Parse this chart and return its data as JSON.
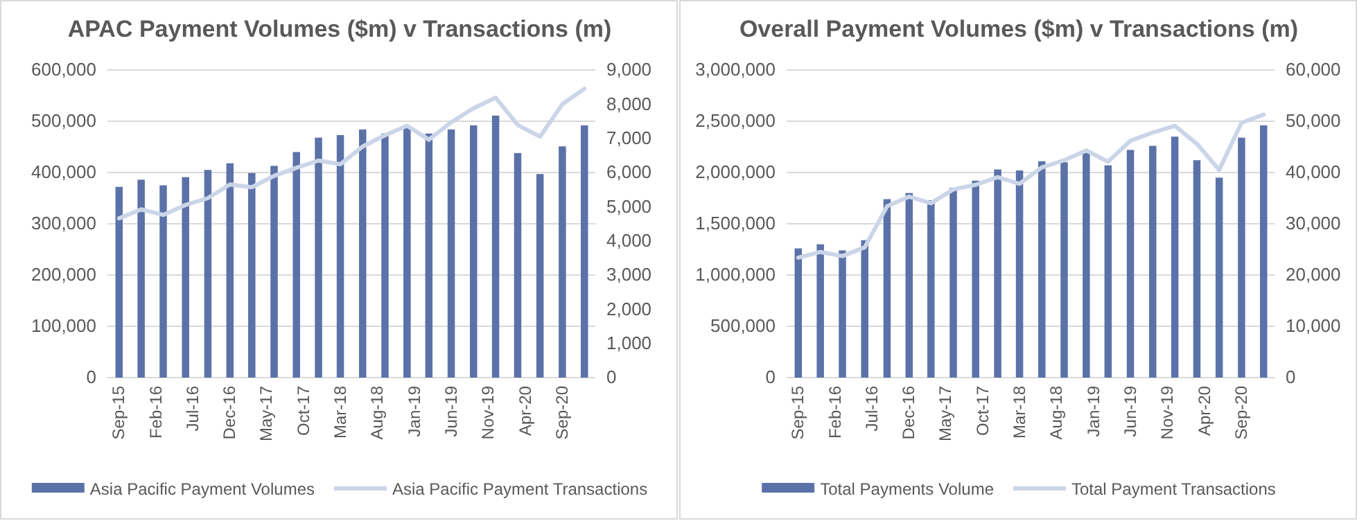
{
  "chart_data": [
    {
      "type": "bar",
      "title": "APAC Payment Volumes ($m) v Transactions (m)",
      "x": [
        "2015-09",
        "2015-12",
        "2016-03",
        "2016-06",
        "2016-09",
        "2016-12",
        "2017-03",
        "2017-06",
        "2017-09",
        "2017-12",
        "2018-03",
        "2018-06",
        "2018-09",
        "2018-12",
        "2019-03",
        "2019-06",
        "2019-09",
        "2019-12",
        "2020-03",
        "2020-06",
        "2020-09",
        "2020-12"
      ],
      "series": [
        {
          "name": "Asia Pacific Payment Volumes",
          "color": "#5b72a8",
          "values": [
            372000,
            386000,
            375000,
            391000,
            405000,
            418000,
            399000,
            413000,
            440000,
            468000,
            473000,
            484000,
            476000,
            487000,
            476000,
            484000,
            492000,
            511000,
            438000,
            397000,
            451000,
            492000
          ]
        },
        {
          "name": "Asia Pacific Payment Transactions",
          "type": "line",
          "axis": "y2",
          "color": "#cbd5e8",
          "values": [
            4660,
            4920,
            4760,
            5050,
            5250,
            5650,
            5570,
            5900,
            6140,
            6350,
            6240,
            6760,
            7090,
            7370,
            6960,
            7470,
            7880,
            8190,
            7390,
            7050,
            8000,
            8450
          ]
        }
      ],
      "xlim": [
        "2015-07-15",
        "2021-01-15"
      ],
      "xticks": [
        {
          "value": "2015-09",
          "label": "Sep-15"
        },
        {
          "value": "2016-02",
          "label": "Feb-16"
        },
        {
          "value": "2016-07",
          "label": "Jul-16"
        },
        {
          "value": "2016-12",
          "label": "Dec-16"
        },
        {
          "value": "2017-05",
          "label": "May-17"
        },
        {
          "value": "2017-10",
          "label": "Oct-17"
        },
        {
          "value": "2018-03",
          "label": "Mar-18"
        },
        {
          "value": "2018-08",
          "label": "Aug-18"
        },
        {
          "value": "2019-01",
          "label": "Jan-19"
        },
        {
          "value": "2019-06",
          "label": "Jun-19"
        },
        {
          "value": "2019-11",
          "label": "Nov-19"
        },
        {
          "value": "2020-04",
          "label": "Apr-20"
        },
        {
          "value": "2020-09",
          "label": "Sep-20"
        }
      ],
      "ylim": [
        0,
        600000
      ],
      "yticks": [
        {
          "value": 0,
          "label": "0"
        },
        {
          "value": 100000,
          "label": "100,000"
        },
        {
          "value": 200000,
          "label": "200,000"
        },
        {
          "value": 300000,
          "label": "300,000"
        },
        {
          "value": 400000,
          "label": "400,000"
        },
        {
          "value": 500000,
          "label": "500,000"
        },
        {
          "value": 600000,
          "label": "600,000"
        }
      ],
      "y2lim": [
        0,
        9000
      ],
      "y2ticks": [
        {
          "value": 0,
          "label": "0"
        },
        {
          "value": 1000,
          "label": "1,000"
        },
        {
          "value": 2000,
          "label": "2,000"
        },
        {
          "value": 3000,
          "label": "3,000"
        },
        {
          "value": 4000,
          "label": "4,000"
        },
        {
          "value": 5000,
          "label": "5,000"
        },
        {
          "value": 6000,
          "label": "6,000"
        },
        {
          "value": 7000,
          "label": "7,000"
        },
        {
          "value": 8000,
          "label": "8,000"
        },
        {
          "value": 9000,
          "label": "9,000"
        }
      ],
      "grid": "y",
      "legend": "bottom"
    },
    {
      "type": "bar",
      "title": "Overall Payment Volumes ($m) v Transactions (m)",
      "x": [
        "2015-09",
        "2015-12",
        "2016-03",
        "2016-06",
        "2016-09",
        "2016-12",
        "2017-03",
        "2017-06",
        "2017-09",
        "2017-12",
        "2018-03",
        "2018-06",
        "2018-09",
        "2018-12",
        "2019-03",
        "2019-06",
        "2019-09",
        "2019-12",
        "2020-03",
        "2020-06",
        "2020-09",
        "2020-12"
      ],
      "series": [
        {
          "name": "Total Payments Volume",
          "color": "#5b72a8",
          "values": [
            1260000,
            1300000,
            1240000,
            1340000,
            1740000,
            1800000,
            1730000,
            1850000,
            1920000,
            2030000,
            2020000,
            2110000,
            2100000,
            2190000,
            2070000,
            2220000,
            2260000,
            2350000,
            2120000,
            1950000,
            2340000,
            2460000
          ]
        },
        {
          "name": "Total Payment Transactions",
          "type": "line",
          "axis": "y2",
          "color": "#cbd5e8",
          "values": [
            23400,
            24500,
            23700,
            25400,
            33400,
            35300,
            34000,
            36700,
            37600,
            39100,
            37800,
            41000,
            42400,
            44300,
            42100,
            46200,
            47800,
            49100,
            45600,
            40500,
            49700,
            51300
          ]
        }
      ],
      "xlim": [
        "2015-07-15",
        "2021-01-15"
      ],
      "xticks": [
        {
          "value": "2015-09",
          "label": "Sep-15"
        },
        {
          "value": "2016-02",
          "label": "Feb-16"
        },
        {
          "value": "2016-07",
          "label": "Jul-16"
        },
        {
          "value": "2016-12",
          "label": "Dec-16"
        },
        {
          "value": "2017-05",
          "label": "May-17"
        },
        {
          "value": "2017-10",
          "label": "Oct-17"
        },
        {
          "value": "2018-03",
          "label": "Mar-18"
        },
        {
          "value": "2018-08",
          "label": "Aug-18"
        },
        {
          "value": "2019-01",
          "label": "Jan-19"
        },
        {
          "value": "2019-06",
          "label": "Jun-19"
        },
        {
          "value": "2019-11",
          "label": "Nov-19"
        },
        {
          "value": "2020-04",
          "label": "Apr-20"
        },
        {
          "value": "2020-09",
          "label": "Sep-20"
        }
      ],
      "ylim": [
        0,
        3000000
      ],
      "yticks": [
        {
          "value": 0,
          "label": "0"
        },
        {
          "value": 500000,
          "label": "500,000"
        },
        {
          "value": 1000000,
          "label": "1,000,000"
        },
        {
          "value": 1500000,
          "label": "1,500,000"
        },
        {
          "value": 2000000,
          "label": "2,000,000"
        },
        {
          "value": 2500000,
          "label": "2,500,000"
        },
        {
          "value": 3000000,
          "label": "3,000,000"
        }
      ],
      "y2lim": [
        0,
        60000
      ],
      "y2ticks": [
        {
          "value": 0,
          "label": "0"
        },
        {
          "value": 10000,
          "label": "10,000"
        },
        {
          "value": 20000,
          "label": "20,000"
        },
        {
          "value": 30000,
          "label": "30,000"
        },
        {
          "value": 40000,
          "label": "40,000"
        },
        {
          "value": 50000,
          "label": "50,000"
        },
        {
          "value": 60000,
          "label": "60,000"
        }
      ],
      "grid": "y",
      "legend": "bottom"
    }
  ]
}
